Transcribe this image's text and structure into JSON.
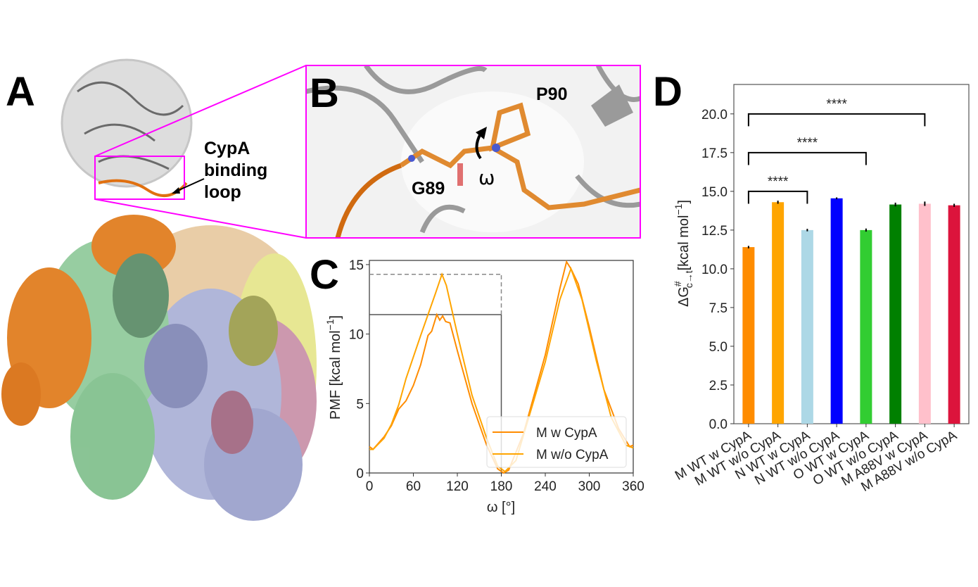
{
  "panels": {
    "a": {
      "label": "A",
      "annotation": [
        "CypA",
        "binding",
        "loop"
      ]
    },
    "b": {
      "label": "B",
      "residue_1": "P90",
      "residue_2": "G89",
      "angle": "ω"
    },
    "c": {
      "label": "C"
    },
    "d": {
      "label": "D"
    }
  },
  "colors": {
    "magenta": "#ff00ff",
    "cypa_gray": "#c8c8c8",
    "loop_orange": "#e07010"
  },
  "chart_data": [
    {
      "id": "C",
      "type": "line",
      "xlabel": "ω [°]",
      "ylabel": "PMF [kcal mol",
      "ylabel_sup": "−1",
      "ylabel_end": "]",
      "xlim": [
        0,
        360
      ],
      "ylim": [
        0,
        15.3
      ],
      "xticks": [
        0,
        60,
        120,
        180,
        240,
        300,
        360
      ],
      "yticks": [
        0,
        5,
        10,
        15
      ],
      "legend_position": "lower-right",
      "series": [
        {
          "name": "M w CypA",
          "color": "#ff8c00",
          "x": [
            0,
            5,
            20,
            30,
            40,
            50,
            60,
            70,
            80,
            85,
            92,
            96,
            100,
            104,
            110,
            120,
            140,
            160,
            175,
            183,
            190,
            210,
            240,
            260,
            269,
            275,
            285,
            300,
            320,
            340,
            355,
            360
          ],
          "y": [
            1.9,
            1.7,
            2.6,
            3.4,
            4.6,
            5.2,
            6.3,
            7.8,
            9.9,
            10.2,
            11.4,
            11.0,
            11.3,
            10.9,
            10.8,
            8.8,
            5.0,
            2.0,
            0.3,
            0.0,
            0.2,
            2.8,
            8.5,
            13.3,
            15.2,
            14.7,
            13.6,
            10.5,
            6.0,
            3.2,
            1.9,
            2.0
          ]
        },
        {
          "name": "M w/o CypA",
          "color": "#ffa500",
          "x": [
            0,
            5,
            20,
            30,
            40,
            50,
            70,
            90,
            99,
            105,
            120,
            140,
            160,
            175,
            185,
            200,
            240,
            260,
            275,
            290,
            310,
            330,
            350,
            360
          ],
          "y": [
            1.7,
            1.7,
            2.5,
            3.5,
            4.9,
            6.8,
            9.9,
            12.9,
            14.3,
            13.5,
            10.0,
            5.6,
            2.5,
            0.5,
            0.1,
            0.9,
            8.0,
            12.5,
            14.7,
            12.5,
            8.0,
            4.0,
            2.0,
            1.8
          ]
        }
      ],
      "reference_lines": [
        {
          "style": "solid",
          "value": 11.4,
          "x_end": 180
        },
        {
          "style": "dashed",
          "value": 14.3,
          "x_end": 180
        }
      ]
    },
    {
      "id": "D",
      "type": "bar",
      "ylabel_parts": [
        "ΔG",
        "#",
        "c→t",
        "[kcal mol",
        "−1",
        "]"
      ],
      "ylim": [
        0,
        21.9
      ],
      "yticks": [
        "0.0",
        "2.5",
        "5.0",
        "7.5",
        "10.0",
        "12.5",
        "15.0",
        "17.5",
        "20.0"
      ],
      "categories": [
        "M WT w CypA",
        "M WT w/o CypA",
        "N WT w CypA",
        "N WT w/o CypA",
        "O WT w CypA",
        "O WT w/o CypA",
        "M A88V w CypA",
        "M A88V w/o CypA"
      ],
      "values": [
        11.4,
        14.3,
        12.5,
        14.55,
        12.5,
        14.15,
        14.2,
        14.1
      ],
      "errors": [
        0.08,
        0.1,
        0.08,
        0.06,
        0.1,
        0.12,
        0.14,
        0.1
      ],
      "colors": [
        "#ff8c00",
        "#ffa500",
        "#add8e6",
        "#0000ff",
        "#32cd32",
        "#008000",
        "#ffc0cb",
        "#dc143c"
      ],
      "significance": [
        {
          "from": 0,
          "to": 2,
          "level": 15.0,
          "label": "****"
        },
        {
          "from": 0,
          "to": 4,
          "level": 17.5,
          "label": "****"
        },
        {
          "from": 0,
          "to": 6,
          "level": 20.0,
          "label": "****"
        }
      ]
    }
  ]
}
